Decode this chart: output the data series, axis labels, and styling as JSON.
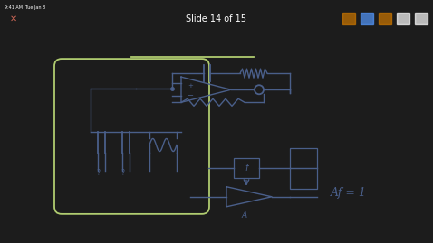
{
  "bg_outer": "#1c1c1c",
  "bg_slide": "#f8f8f8",
  "toolbar_color": "#252525",
  "toolbar_text": "Slide 14 of 15",
  "status_text": "9:41 AM  Tue Jan 8",
  "drawing_color": "#4a5f8a",
  "green_color": "#b0cc70",
  "text_Af1": "Af = 1",
  "text_A": "A",
  "text_f": "f"
}
